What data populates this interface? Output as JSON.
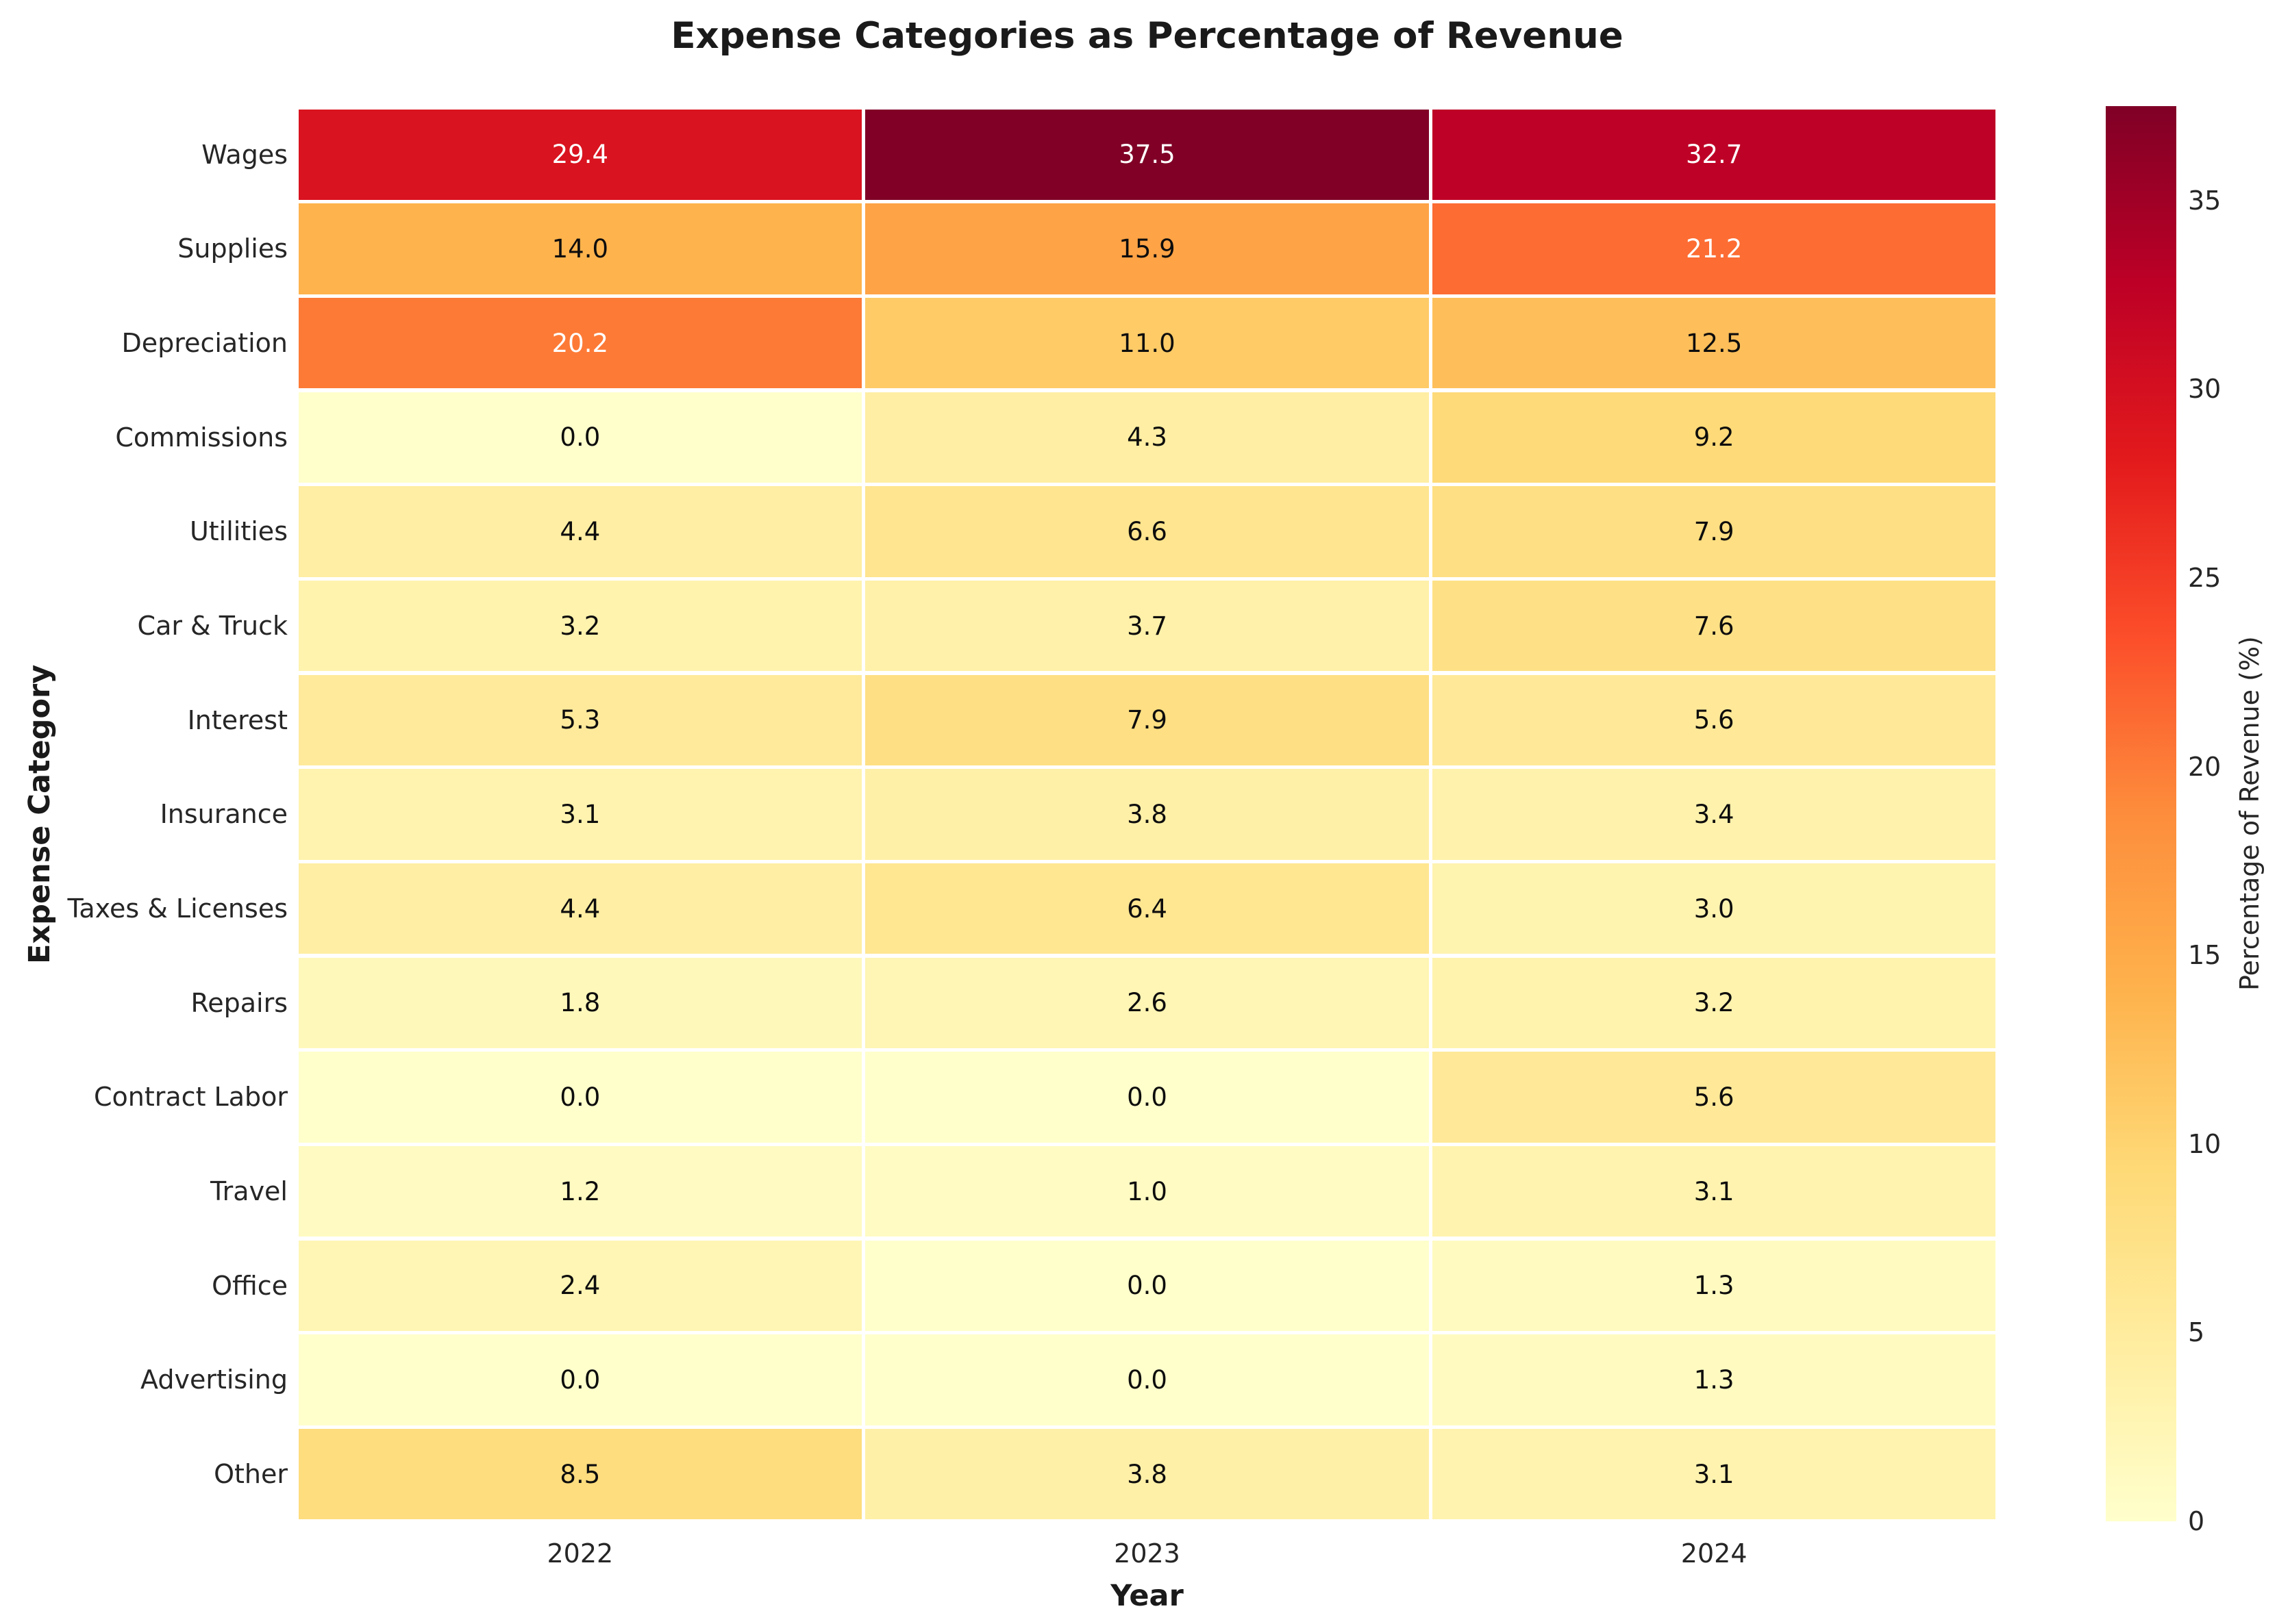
{
  "chart_data": {
    "type": "heatmap",
    "title": "Expense Categories as Percentage of Revenue",
    "xlabel": "Year",
    "ylabel": "Expense Category",
    "x": [
      "2022",
      "2023",
      "2024"
    ],
    "categories": [
      "Wages",
      "Supplies",
      "Depreciation",
      "Commissions",
      "Utilities",
      "Car & Truck",
      "Interest",
      "Insurance",
      "Taxes & Licenses",
      "Repairs",
      "Contract Labor",
      "Travel",
      "Office",
      "Advertising",
      "Other"
    ],
    "values": [
      [
        29.4,
        37.5,
        32.7
      ],
      [
        14.0,
        15.9,
        21.2
      ],
      [
        20.2,
        11.0,
        12.5
      ],
      [
        0.0,
        4.3,
        9.2
      ],
      [
        4.4,
        6.6,
        7.9
      ],
      [
        3.2,
        3.7,
        7.6
      ],
      [
        5.3,
        7.9,
        5.6
      ],
      [
        3.1,
        3.8,
        3.4
      ],
      [
        4.4,
        6.4,
        3.0
      ],
      [
        1.8,
        2.6,
        3.2
      ],
      [
        0.0,
        0.0,
        5.6
      ],
      [
        1.2,
        1.0,
        3.1
      ],
      [
        2.4,
        0.0,
        1.3
      ],
      [
        0.0,
        0.0,
        1.3
      ],
      [
        8.5,
        3.8,
        3.1
      ]
    ],
    "value_format": "one-decimal",
    "vmin": 0,
    "vmax": 37.5,
    "colormap": "YlOrRd",
    "colormap_anchors": [
      "#ffffcc",
      "#ffeda0",
      "#fed976",
      "#feb24c",
      "#fd8d3c",
      "#fc4e2a",
      "#e31a1c",
      "#bd0026",
      "#800026"
    ],
    "grid_line_color": "#ffffff",
    "annotation_text_dark": "#0d0d0d",
    "annotation_text_light": "#ffffff",
    "colorbar": {
      "label": "Percentage of Revenue (%)",
      "ticks": [
        0,
        5,
        10,
        15,
        20,
        25,
        30,
        35
      ]
    },
    "legend_position": "right",
    "grid": false
  }
}
